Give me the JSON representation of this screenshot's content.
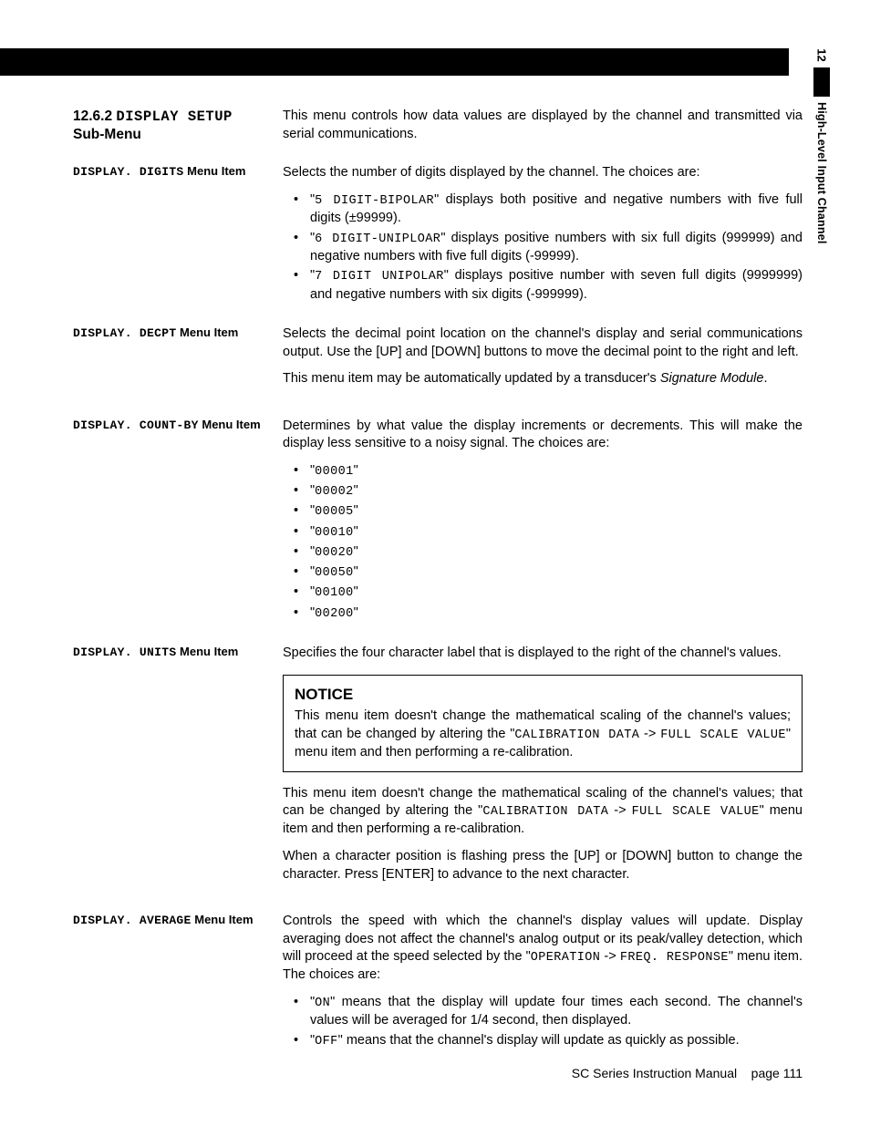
{
  "side": {
    "number": "12",
    "title": "High-Level Input Channel"
  },
  "section": {
    "number": "12.6.2",
    "title_lcd": "DISPLAY SETUP",
    "subtitle": "Sub-Menu",
    "desc": "This menu controls how data values are displayed by the channel and transmitted via serial communications."
  },
  "digits": {
    "label_lcd": "DISPLAY. DIGITS",
    "label_suffix": "Menu Item",
    "intro": "Selects the number of digits displayed by the channel. The choices are:",
    "items": [
      {
        "code": "5 DIGIT-BIPOLAR",
        "rest": "\" displays both positive and negative numbers with five full digits (±99999)."
      },
      {
        "code": "6 DIGIT-UNIPLOAR",
        "rest": "\" displays positive numbers with six full digits (999999) and negative numbers with five full digits (-99999)."
      },
      {
        "code": "7 DIGIT UNIPOLAR",
        "rest": "\" displays positive number with seven full digits (9999999) and negative numbers with six digits (-999999)."
      }
    ]
  },
  "decpt": {
    "label_lcd": "DISPLAY. DECPT",
    "label_suffix": "Menu Item",
    "p1": "Selects the decimal point location on the channel's display and serial communications output.  Use the [UP] and [DOWN] buttons to move the decimal point to the right and left.",
    "p2_a": "This menu item may be automatically updated by a transducer's ",
    "p2_em": "Signature Module",
    "p2_b": "."
  },
  "countby": {
    "label_lcd": "DISPLAY. COUNT-BY",
    "label_suffix": "Menu Item",
    "intro": "Determines by what value the display increments or decrements.  This will make the display less sensitive to a noisy signal. The choices are:",
    "options": [
      "00001",
      "00002",
      "00005",
      "00010",
      "00020",
      "00050",
      "00100",
      "00200"
    ]
  },
  "units": {
    "label_lcd": "DISPLAY. UNITS",
    "label_suffix": "Menu Item",
    "intro": "Specifies the four character label that is displayed to the right of the channel's values.",
    "notice_title": "NOTICE",
    "notice_a": "This menu item doesn't change the mathematical scaling of the channel's values; that can be changed by altering the \"",
    "notice_code1": "CALIBRATION DATA",
    "notice_mid": " -> ",
    "notice_code2": "FULL SCALE VALUE",
    "notice_b": "\" menu item and then performing a re-calibration.",
    "para_a": "This menu item doesn't change the mathematical scaling of the channel's values; that can be changed by altering the \"",
    "para_code1": "CALIBRATION DATA",
    "para_mid": " -> ",
    "para_code2": "FULL SCALE VALUE",
    "para_b": "\" menu item and then performing a re-calibration.",
    "p2": "When a character position is flashing press the [UP] or [DOWN] button to change the character.  Press [ENTER] to advance to the next character."
  },
  "average": {
    "label_lcd": "DISPLAY. AVERAGE",
    "label_suffix": "Menu Item",
    "intro_a": "Controls the speed with which the channel's display values will update.  Display averaging does not affect the channel's analog output or its peak/valley detection, which will proceed at the speed selected by the \"",
    "intro_code1": "OPERATION",
    "intro_mid": " -> ",
    "intro_code2": "FREQ. RESPONSE",
    "intro_b": "\" menu item.  The choices are:",
    "opt_on_code": "ON",
    "opt_on_rest": "\" means that the display will update four times each second.  The channel's values will be averaged for 1/4 second, then displayed.",
    "opt_off_code": "OFF",
    "opt_off_rest": "\" means that the channel's display will update as quickly as possible."
  },
  "footer": {
    "manual": "SC Series Instruction Manual",
    "page_label": "page 111"
  }
}
